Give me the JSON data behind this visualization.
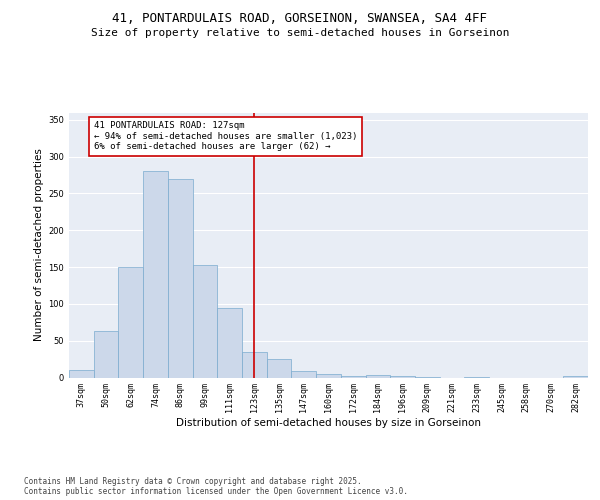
{
  "title_line1": "41, PONTARDULAIS ROAD, GORSEINON, SWANSEA, SA4 4FF",
  "title_line2": "Size of property relative to semi-detached houses in Gorseinon",
  "xlabel": "Distribution of semi-detached houses by size in Gorseinon",
  "ylabel": "Number of semi-detached properties",
  "categories": [
    "37sqm",
    "50sqm",
    "62sqm",
    "74sqm",
    "86sqm",
    "99sqm",
    "111sqm",
    "123sqm",
    "135sqm",
    "147sqm",
    "160sqm",
    "172sqm",
    "184sqm",
    "196sqm",
    "209sqm",
    "221sqm",
    "233sqm",
    "245sqm",
    "258sqm",
    "270sqm",
    "282sqm"
  ],
  "values": [
    10,
    63,
    150,
    280,
    270,
    153,
    95,
    35,
    25,
    9,
    5,
    2,
    4,
    2,
    1,
    0,
    1,
    0,
    0,
    0,
    2
  ],
  "bar_color": "#ccd8ea",
  "bar_edge_color": "#7aaace",
  "vline_x_index": 7,
  "vline_color": "#cc0000",
  "annotation_title": "41 PONTARDULAIS ROAD: 127sqm",
  "annotation_line2": "← 94% of semi-detached houses are smaller (1,023)",
  "annotation_line3": "6% of semi-detached houses are larger (62) →",
  "annotation_box_color": "#cc0000",
  "ylim": [
    0,
    360
  ],
  "yticks": [
    0,
    50,
    100,
    150,
    200,
    250,
    300,
    350
  ],
  "background_color": "#e8edf5",
  "footer_line1": "Contains HM Land Registry data © Crown copyright and database right 2025.",
  "footer_line2": "Contains public sector information licensed under the Open Government Licence v3.0.",
  "title_fontsize": 9,
  "subtitle_fontsize": 8,
  "axis_label_fontsize": 7.5,
  "tick_fontsize": 6,
  "annotation_fontsize": 6.5,
  "footer_fontsize": 5.5
}
